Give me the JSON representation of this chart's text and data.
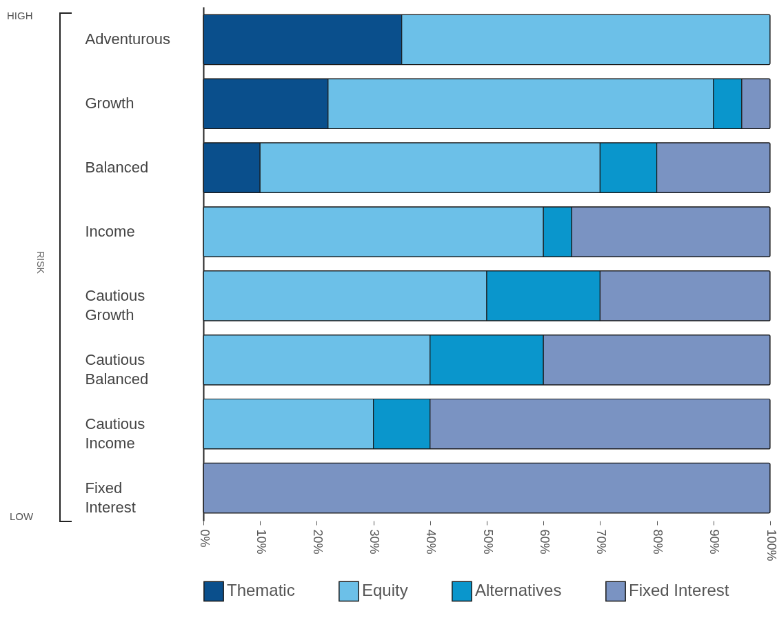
{
  "chart_data": {
    "type": "bar",
    "orientation": "horizontal",
    "stacked": true,
    "ylabel": "RISK",
    "annotations": [
      "HIGH",
      "LOW"
    ],
    "categories": [
      "Adventurous",
      "Growth",
      "Balanced",
      "Income",
      "Cautious Growth",
      "Cautious Balanced",
      "Cautious Income",
      "Fixed Interest"
    ],
    "series": [
      {
        "name": "Thematic",
        "color": "#0a4f8c",
        "values": [
          35,
          22,
          10,
          0,
          0,
          0,
          0,
          0
        ]
      },
      {
        "name": "Equity",
        "color": "#6cc0e8",
        "values": [
          65,
          68,
          60,
          60,
          50,
          40,
          30,
          0
        ]
      },
      {
        "name": "Alternatives",
        "color": "#0a96cc",
        "values": [
          0,
          5,
          10,
          5,
          20,
          20,
          10,
          0
        ]
      },
      {
        "name": "Fixed Interest",
        "color": "#7a93c2",
        "values": [
          0,
          5,
          20,
          35,
          30,
          40,
          60,
          100
        ]
      }
    ],
    "xlim": [
      0,
      100
    ],
    "xticks": [
      {
        "value": 0,
        "label": "0%"
      },
      {
        "value": 10,
        "label": "10%"
      },
      {
        "value": 20,
        "label": "20%"
      },
      {
        "value": 30,
        "label": "30%"
      },
      {
        "value": 40,
        "label": "40%"
      },
      {
        "value": 50,
        "label": "50%"
      },
      {
        "value": 60,
        "label": "60%"
      },
      {
        "value": 70,
        "label": "70%"
      },
      {
        "value": 80,
        "label": "80%"
      },
      {
        "value": 90,
        "label": "90%"
      },
      {
        "value": 100,
        "label": "100%"
      }
    ],
    "grid": false,
    "legend": "bottom"
  }
}
